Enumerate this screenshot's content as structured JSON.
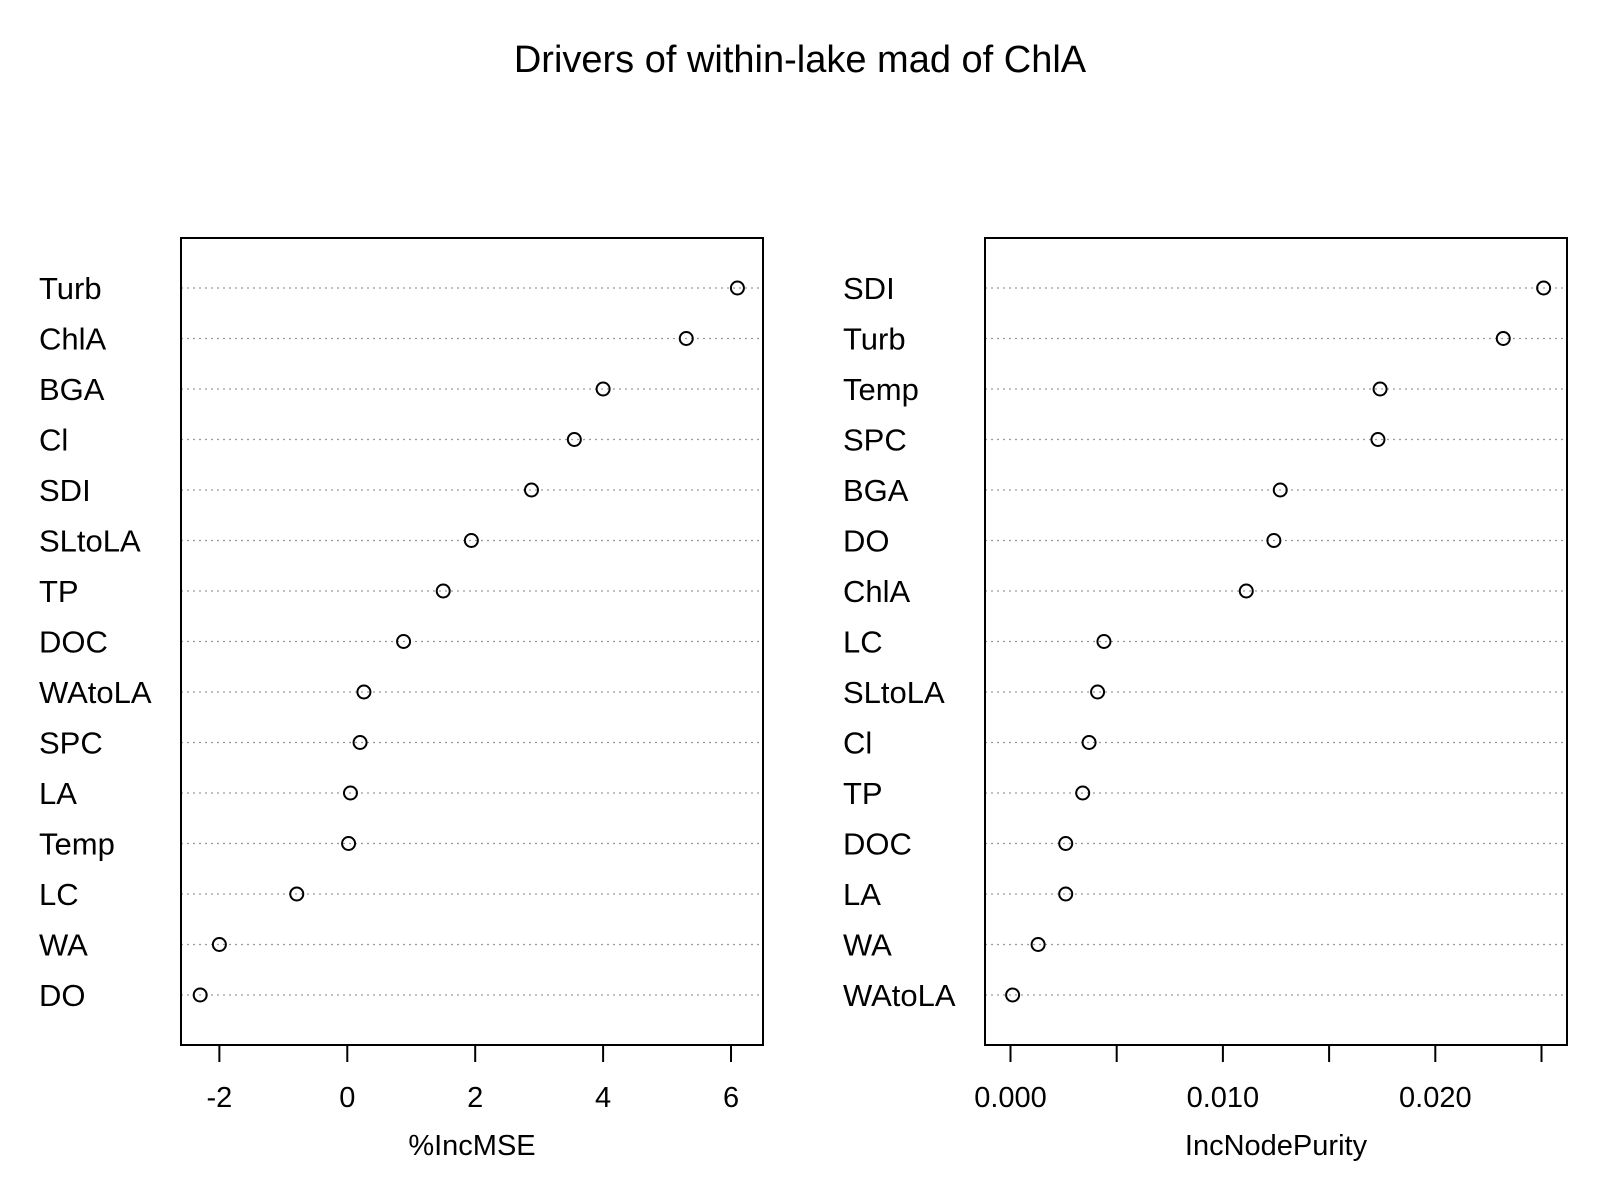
{
  "title": "Drivers of within-lake mad of ChlA",
  "chart_data": [
    {
      "type": "scatter",
      "xlabel": "%IncMSE",
      "xlim": [
        -2.6,
        6.5
      ],
      "xticks": [
        -2,
        0,
        2,
        4,
        6
      ],
      "tick_labels": [
        "-2",
        "0",
        "2",
        "4",
        "6"
      ],
      "categories": [
        "Turb",
        "ChlA",
        "BGA",
        "Cl",
        "SDI",
        "SLtoLA",
        "TP",
        "DOC",
        "WAtoLA",
        "SPC",
        "LA",
        "Temp",
        "LC",
        "WA",
        "DO"
      ],
      "values": [
        6.1,
        5.3,
        4.0,
        3.55,
        2.88,
        1.94,
        1.5,
        0.88,
        0.26,
        0.2,
        0.05,
        0.02,
        -0.79,
        -2.0,
        -2.3
      ]
    },
    {
      "type": "scatter",
      "xlabel": "IncNodePurity",
      "xlim": [
        -0.0012,
        0.0262
      ],
      "xticks": [
        0.0,
        0.005,
        0.01,
        0.015,
        0.02,
        0.025
      ],
      "tick_labels": [
        "0.000",
        "",
        "0.010",
        "",
        "0.020",
        ""
      ],
      "categories": [
        "SDI",
        "Turb",
        "Temp",
        "SPC",
        "BGA",
        "DO",
        "ChlA",
        "LC",
        "SLtoLA",
        "Cl",
        "TP",
        "DOC",
        "LA",
        "WA",
        "WAtoLA"
      ],
      "values": [
        0.0251,
        0.0232,
        0.0174,
        0.0173,
        0.0127,
        0.0124,
        0.0111,
        0.0044,
        0.0041,
        0.0037,
        0.0034,
        0.0026,
        0.0026,
        0.0013,
        0.0001
      ]
    }
  ]
}
